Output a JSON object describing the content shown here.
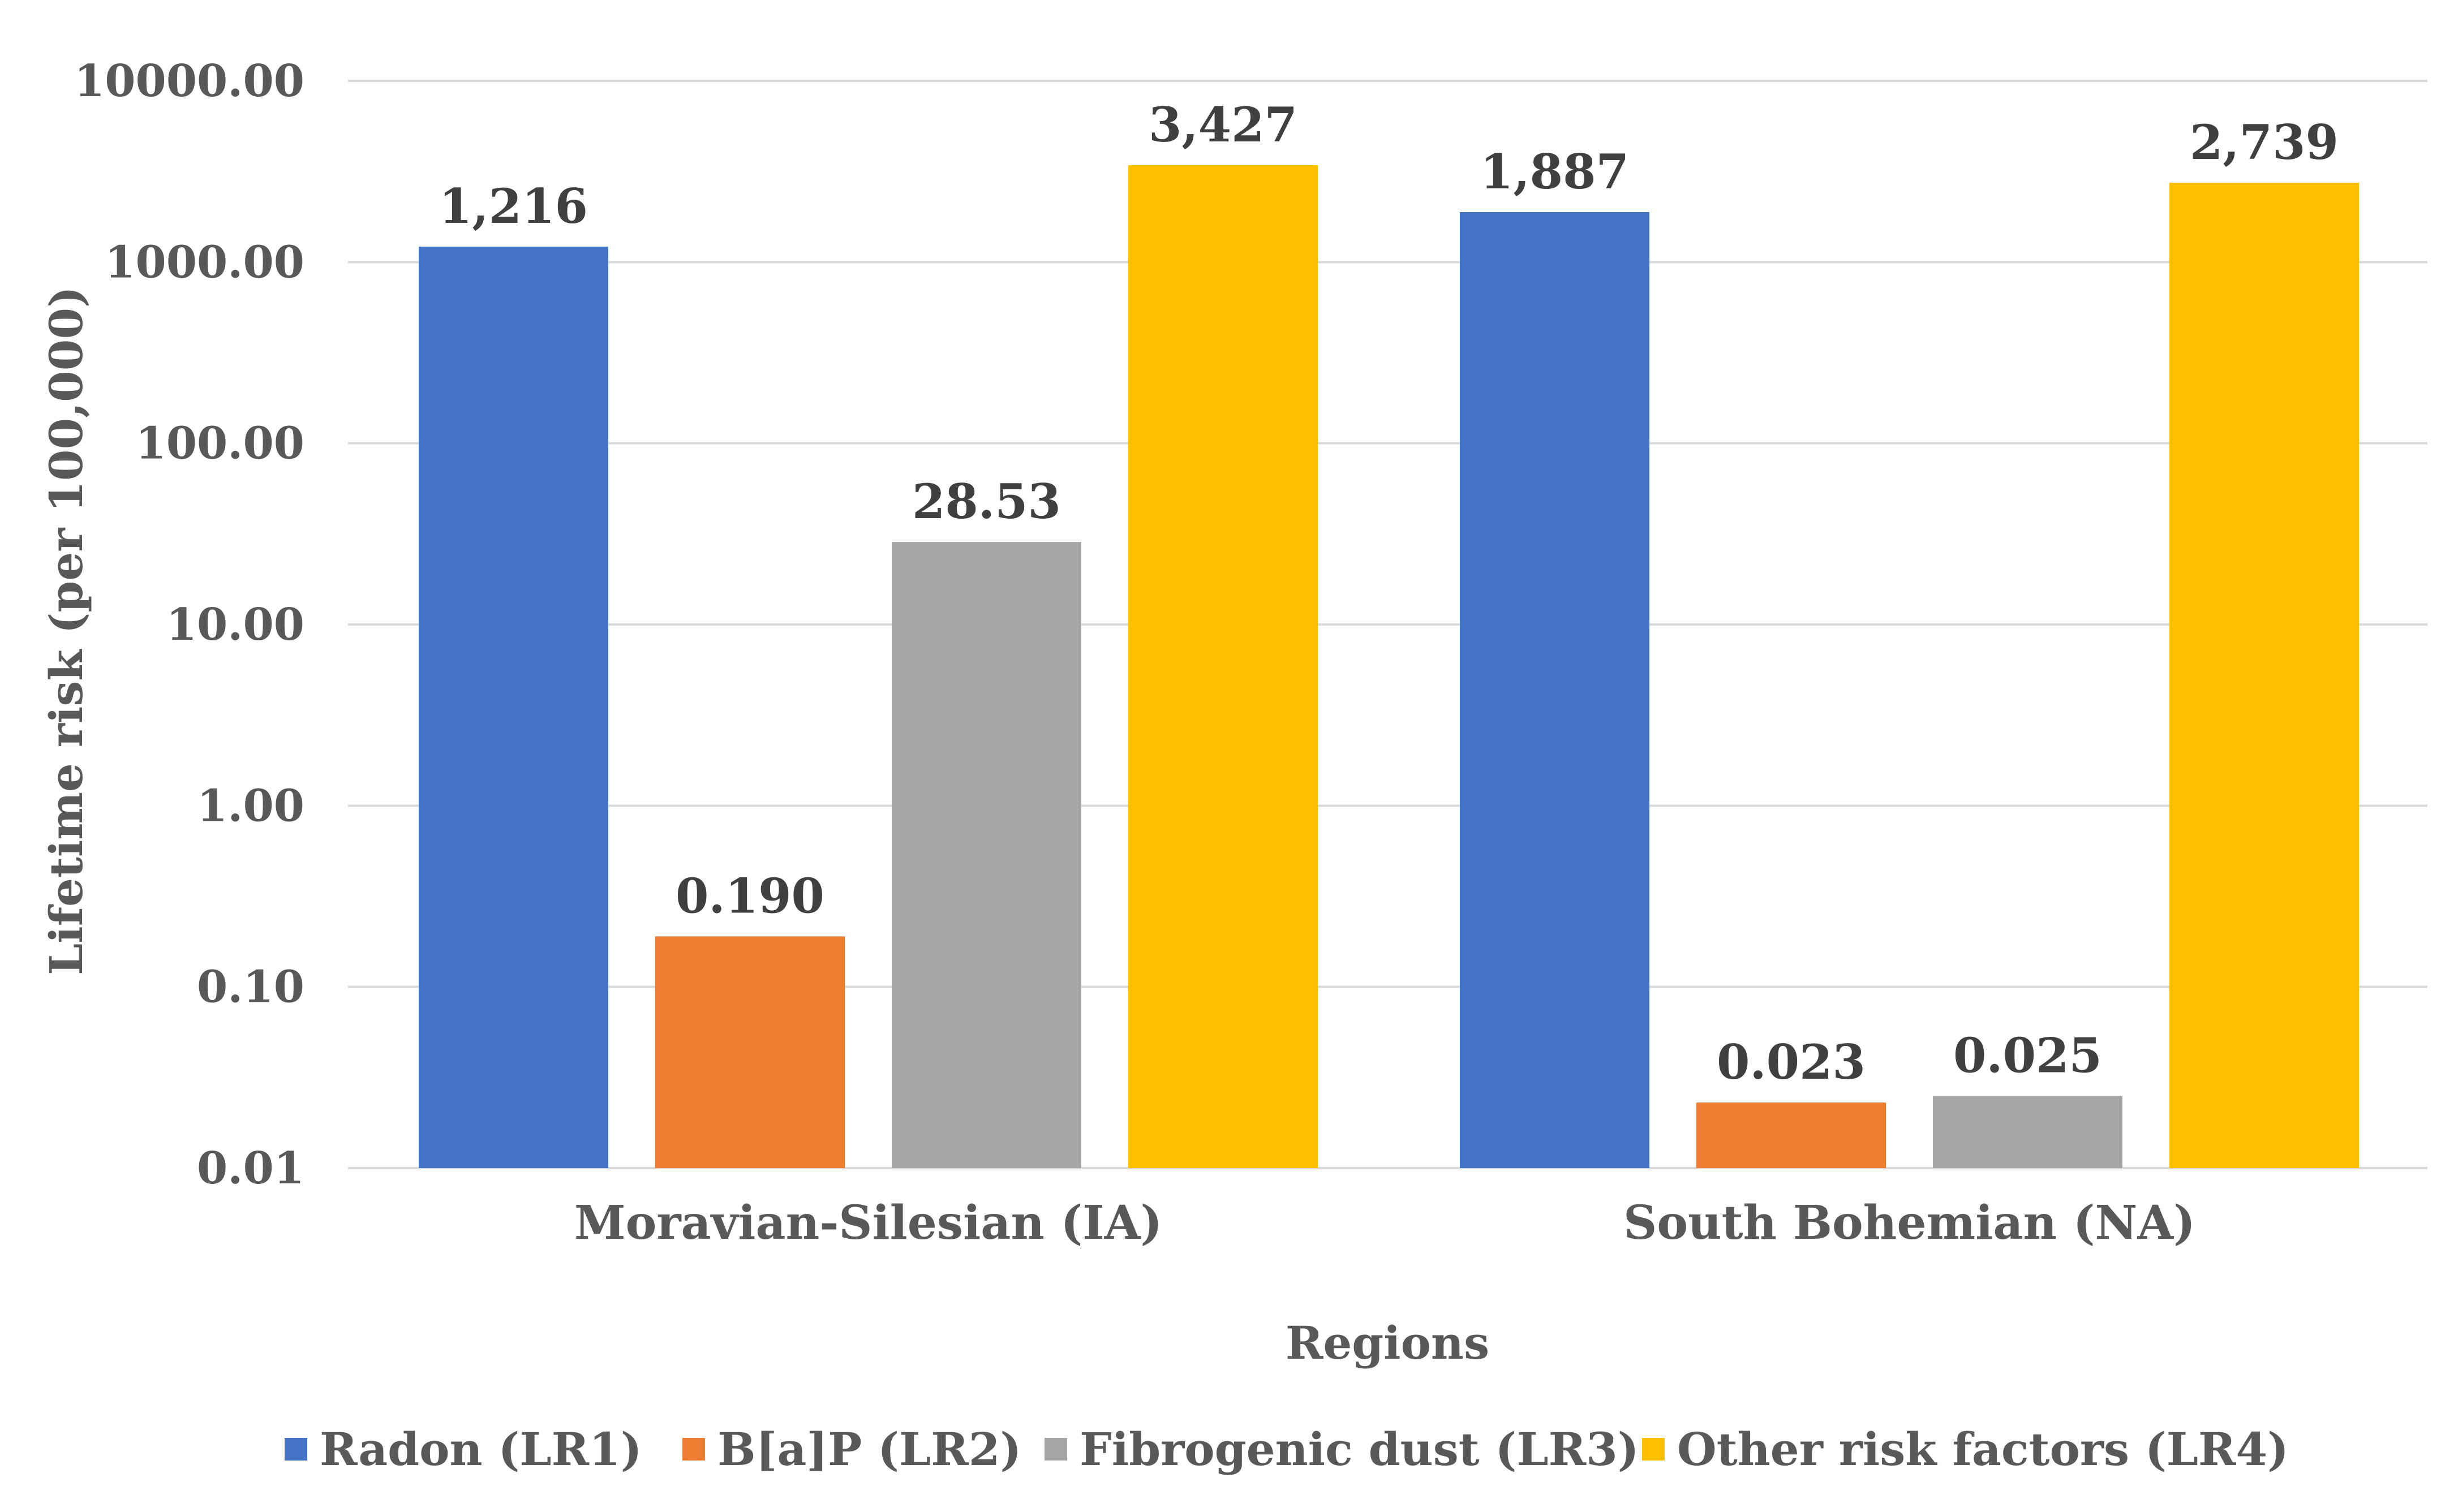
{
  "chart_data": {
    "type": "bar",
    "categories": [
      "Moravian-Silesian (IA)",
      "South Bohemian (NA)"
    ],
    "series": [
      {
        "name": "Radon (LR1)",
        "color": "#4472C4",
        "values": [
          1216,
          1887
        ],
        "labels": [
          "1,216",
          "1,887"
        ]
      },
      {
        "name": "B[a]P (LR2)",
        "color": "#ED7D31",
        "values": [
          0.19,
          0.023
        ],
        "labels": [
          "0.190",
          "0.023"
        ]
      },
      {
        "name": "Fibrogenic dust (LR3)",
        "color": "#A5A5A5",
        "values": [
          28.53,
          0.025
        ],
        "labels": [
          "28.53",
          "0.025"
        ]
      },
      {
        "name": "Other risk factors (LR4)",
        "color": "#FFC000",
        "values": [
          3427,
          2739
        ],
        "labels": [
          "3,427",
          "2,739"
        ]
      }
    ],
    "xlabel": "Regions",
    "ylabel": "Lifetime risk (per 100,000)",
    "yscale": "log",
    "ylim": [
      0.01,
      10000
    ],
    "yticks": [
      "0.01",
      "0.10",
      "1.00",
      "10.00",
      "100.00",
      "1000.00",
      "10000.00"
    ],
    "grid": true,
    "legend_position": "bottom"
  }
}
